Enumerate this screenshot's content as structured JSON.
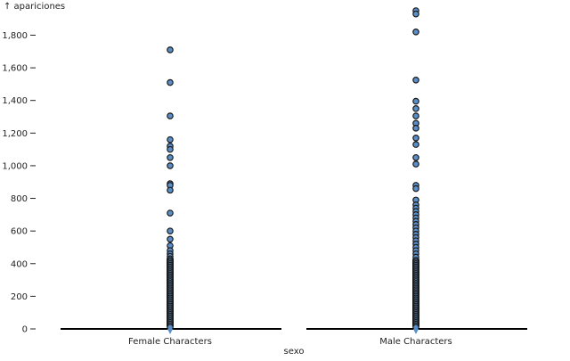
{
  "chart_data": {
    "type": "scatter",
    "y_axis_label": "↑ apariciones",
    "x_axis_label": "sexo",
    "ylim": [
      0,
      1950
    ],
    "y_ticks": [
      {
        "value": 0,
        "label": "0"
      },
      {
        "value": 200,
        "label": "200"
      },
      {
        "value": 400,
        "label": "400"
      },
      {
        "value": 600,
        "label": "600"
      },
      {
        "value": 800,
        "label": "800"
      },
      {
        "value": 1000,
        "label": "1,000"
      },
      {
        "value": 1200,
        "label": "1,200"
      },
      {
        "value": 1400,
        "label": "1,400"
      },
      {
        "value": 1600,
        "label": "1,600"
      },
      {
        "value": 1800,
        "label": "1,800"
      }
    ],
    "grid": false,
    "categories": [
      "Female Characters",
      "Male Characters"
    ],
    "series": [
      {
        "category": "Female Characters",
        "outliers": [
          1710,
          1510,
          1305,
          1160,
          1120,
          1100,
          1050,
          1000,
          890,
          880,
          850,
          710,
          600,
          550,
          510,
          480,
          460,
          445,
          430,
          420,
          410,
          400,
          390,
          380,
          370,
          360,
          350,
          340,
          330,
          320,
          310,
          300,
          290,
          280,
          270,
          260,
          250,
          240,
          230,
          220,
          210,
          200,
          190,
          180,
          170,
          160,
          150,
          140,
          130,
          120,
          110,
          100,
          90,
          80,
          70,
          60,
          50,
          40,
          30,
          20,
          10
        ]
      },
      {
        "category": "Male Characters",
        "outliers": [
          1950,
          1930,
          1820,
          1525,
          1395,
          1350,
          1305,
          1260,
          1230,
          1170,
          1130,
          1050,
          1010,
          880,
          860,
          790,
          760,
          740,
          720,
          700,
          680,
          660,
          640,
          620,
          600,
          580,
          560,
          540,
          520,
          500,
          480,
          460,
          440,
          420,
          410,
          400,
          390,
          380,
          370,
          360,
          350,
          340,
          330,
          320,
          310,
          300,
          290,
          280,
          270,
          260,
          250,
          240,
          230,
          220,
          210,
          200,
          190,
          180,
          170,
          160,
          150,
          140,
          130,
          120,
          110,
          100,
          90,
          80,
          70,
          60,
          50,
          40,
          30,
          20,
          10
        ]
      }
    ],
    "colors": {
      "point_fill": "#5b8fc9",
      "point_stroke": "#1a1a1a",
      "baseline": "#000000",
      "axis": "#222222"
    }
  }
}
